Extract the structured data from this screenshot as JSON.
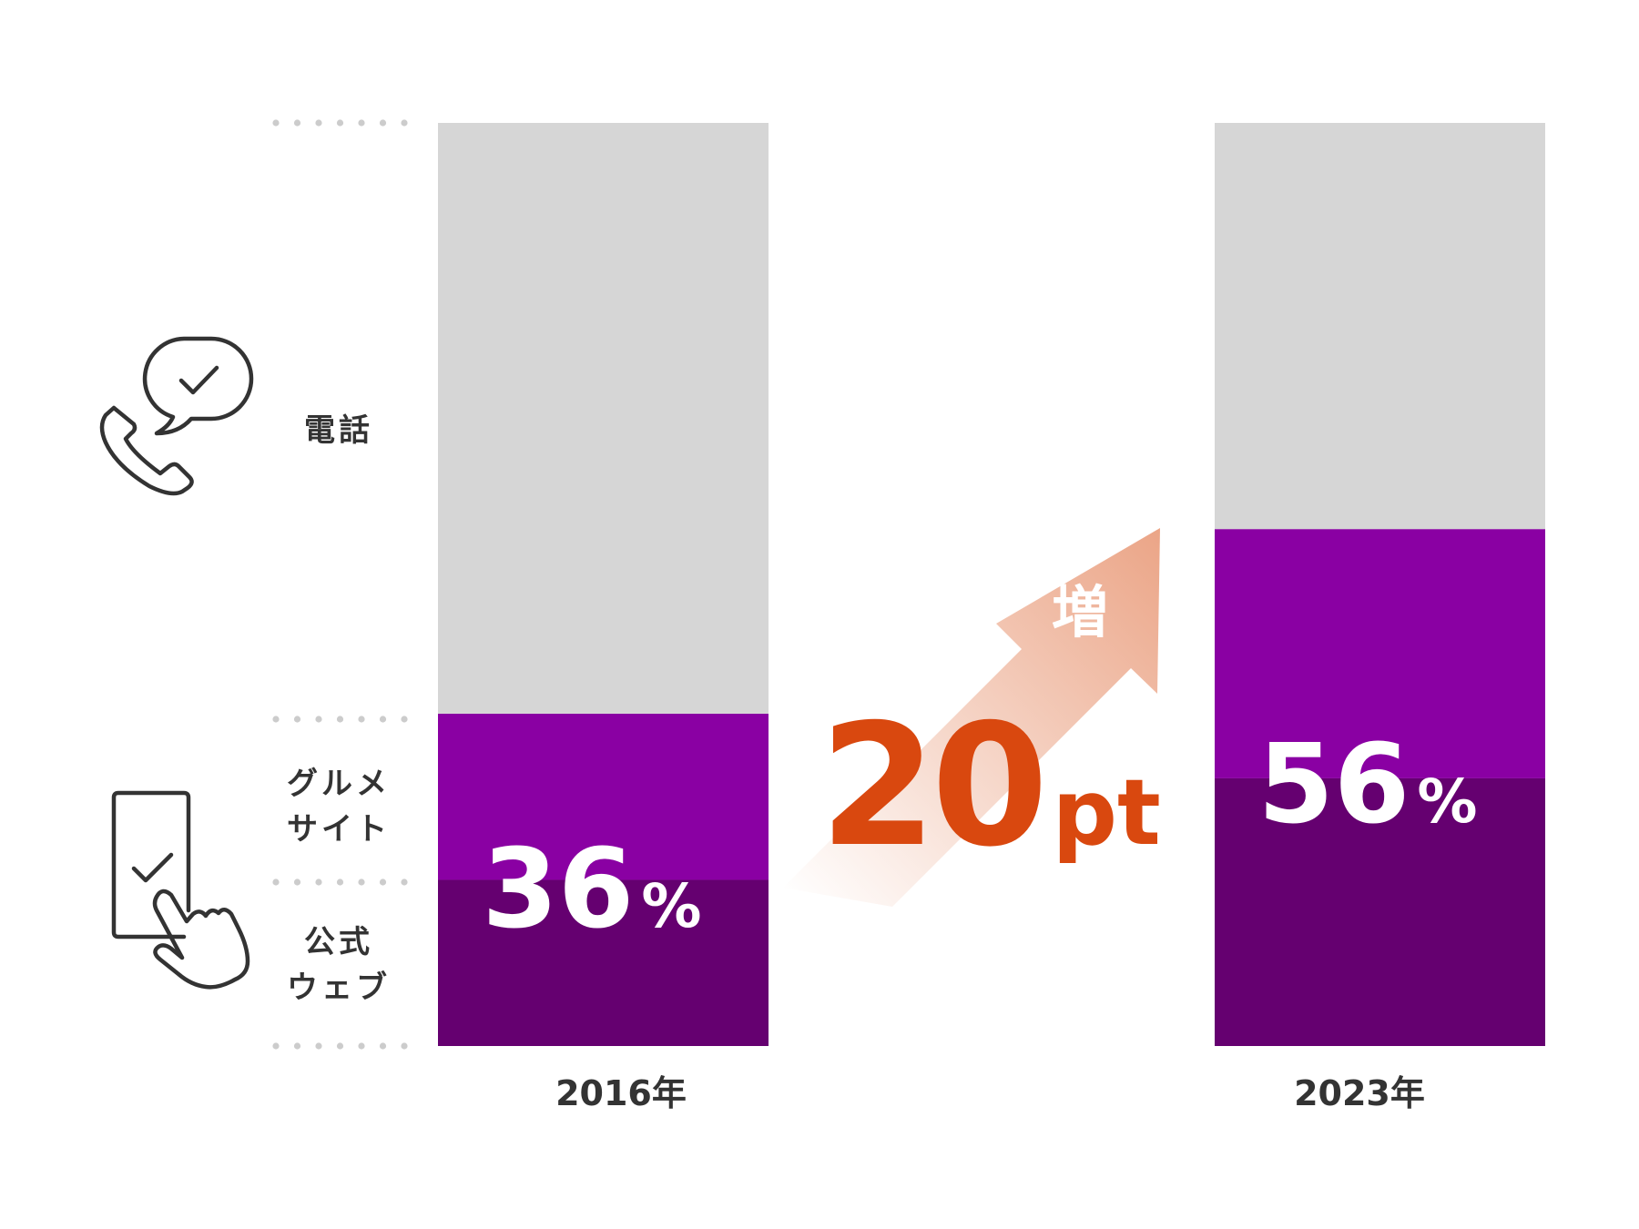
{
  "chart_data": {
    "type": "bar",
    "stacked": true,
    "categories": [
      "2016年",
      "2023年"
    ],
    "series": [
      {
        "name": "公式ウェブ",
        "values": [
          18,
          29
        ],
        "color": "#650070"
      },
      {
        "name": "グルメサイト",
        "values": [
          18,
          27
        ],
        "color": "#8a00a3"
      },
      {
        "name": "電話",
        "values": [
          64,
          44
        ],
        "color": "#d6d6d6"
      }
    ],
    "ylim": [
      0,
      100
    ],
    "bar_labels": [
      "36",
      "56"
    ],
    "percent_sign": "%",
    "row_labels": {
      "phone": "電話",
      "gourmet_line1": "グルメ",
      "gourmet_line2": "サイト",
      "official_line1": "公式",
      "official_line2": "ウェブ"
    },
    "annotation": {
      "value": "20",
      "unit": "pt",
      "note": "増",
      "color": "#d9480f",
      "arrow_color": "#eba587"
    },
    "icons": [
      "phone-chat-check-icon",
      "smartphone-tap-check-icon"
    ],
    "grid": false,
    "legend": "none"
  }
}
